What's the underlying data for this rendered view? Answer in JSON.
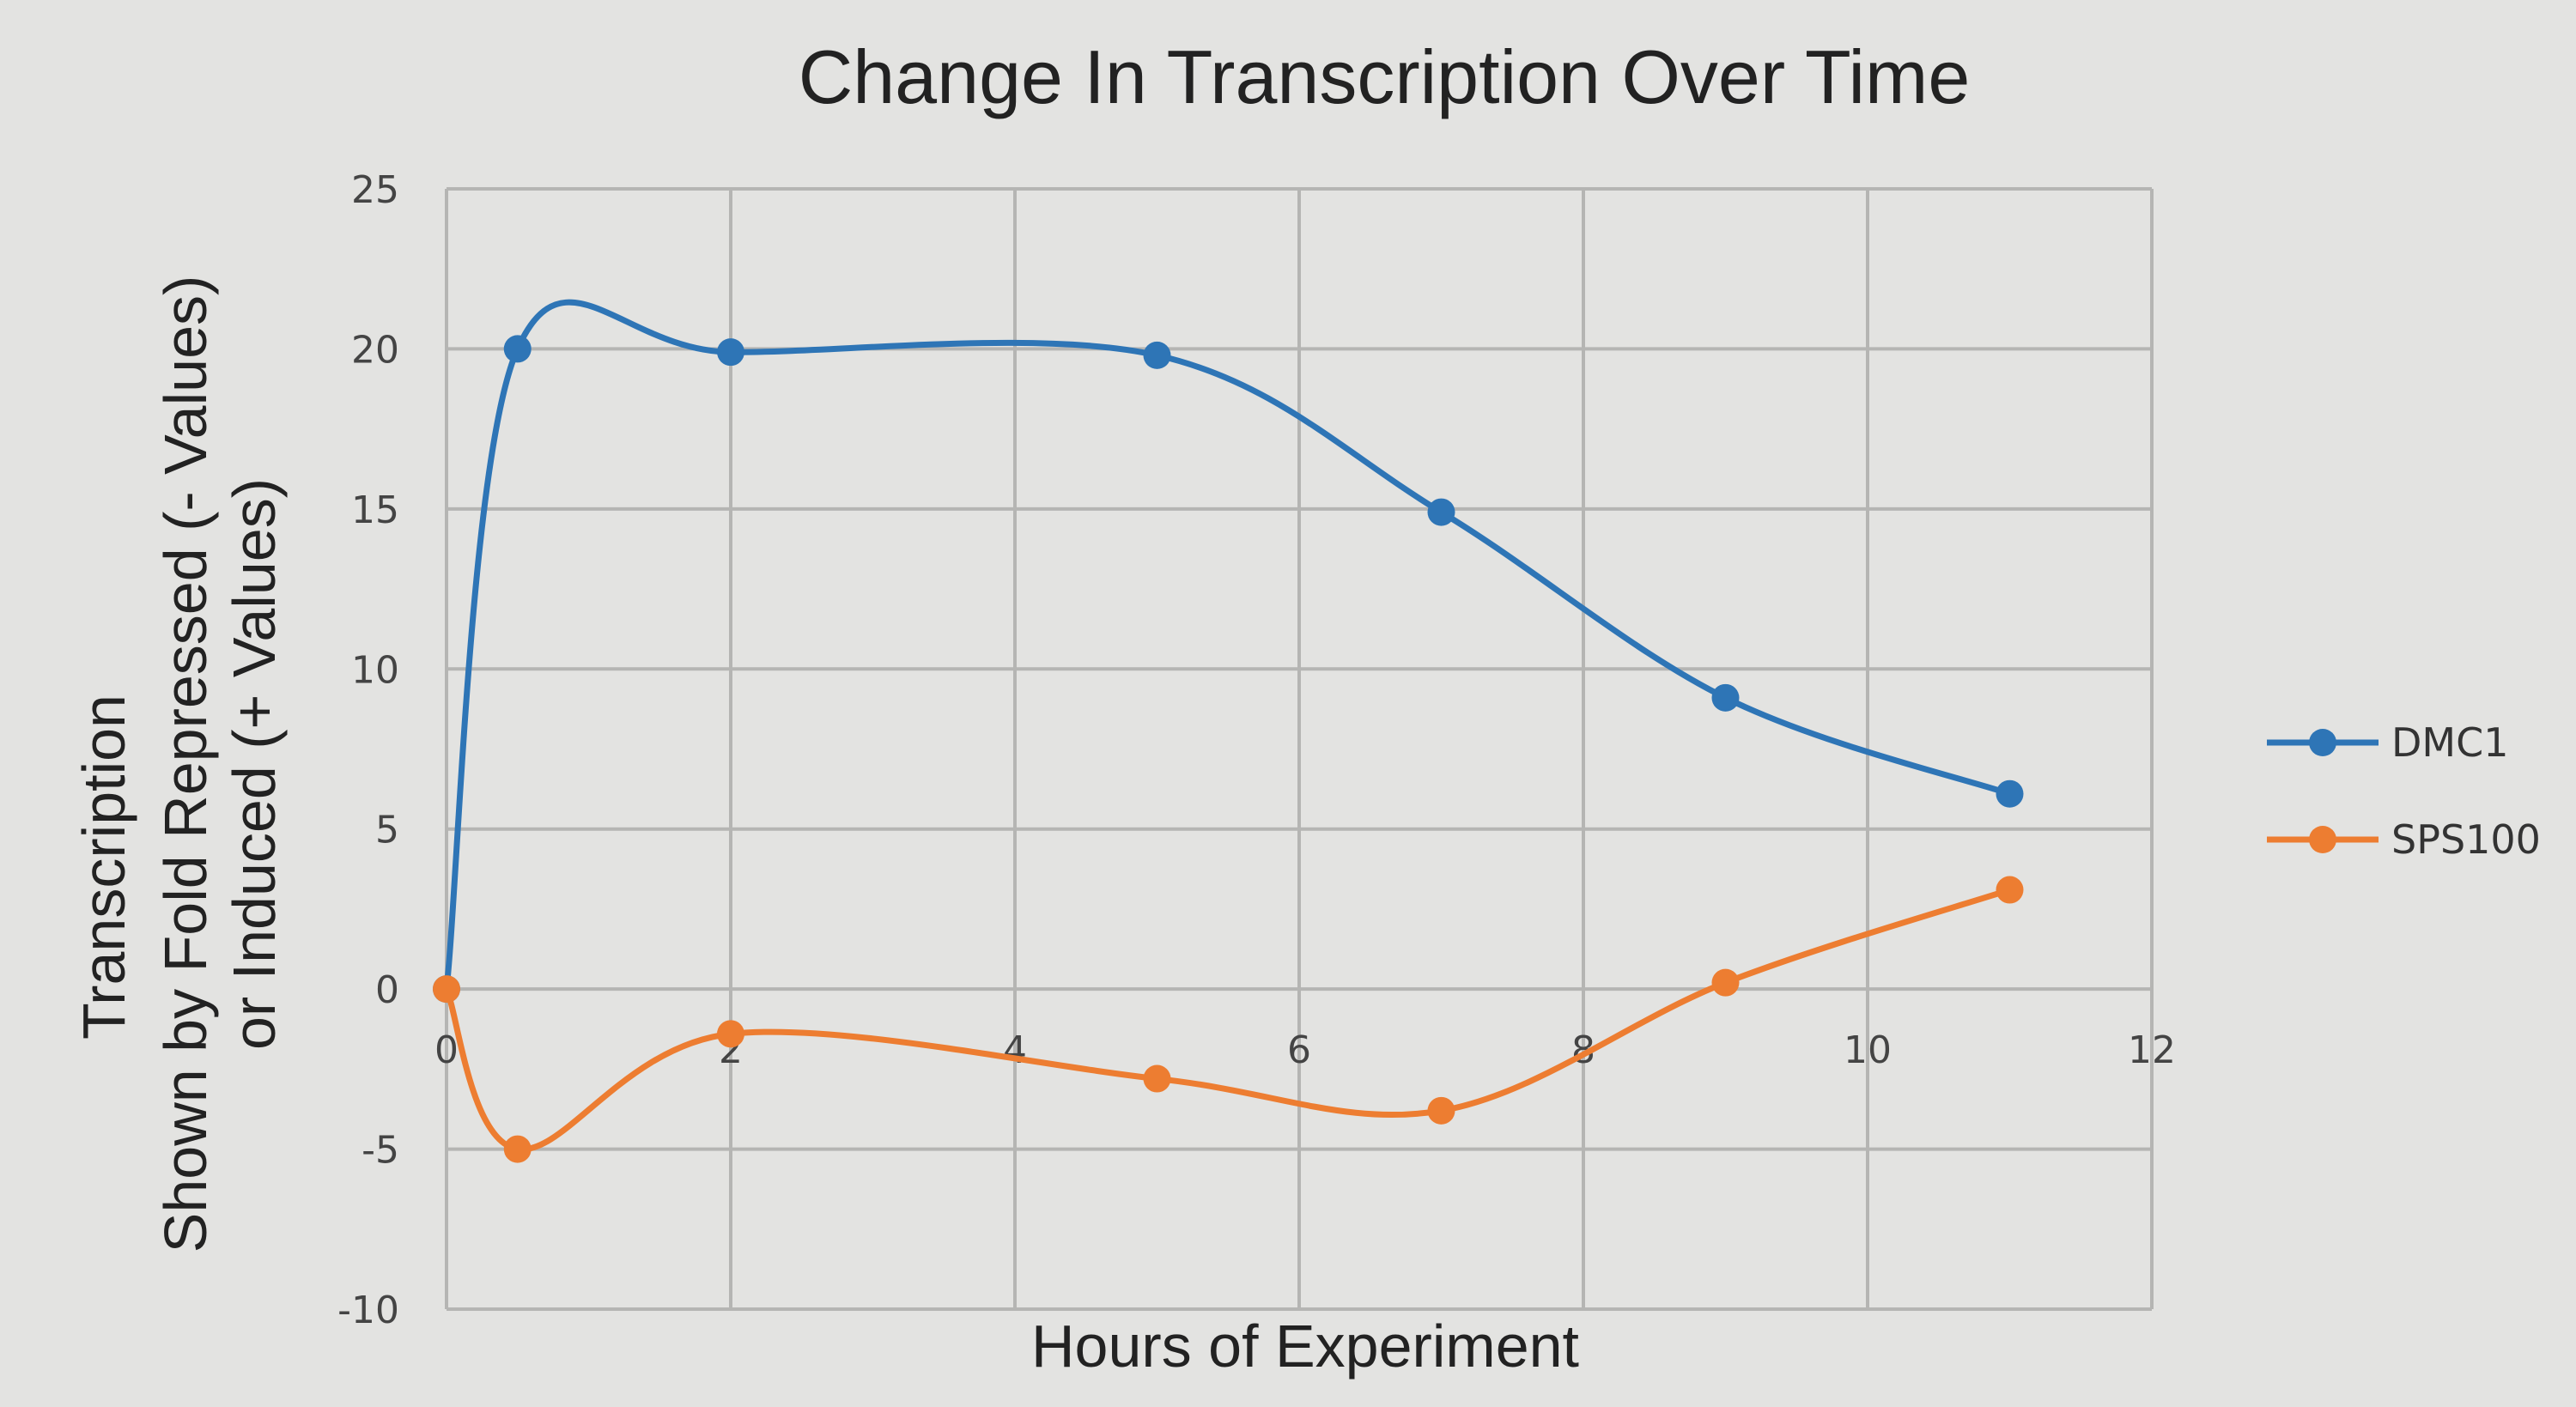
{
  "chart_data": {
    "type": "line",
    "title": "Change In Transcription Over Time",
    "xlabel": "Hours of Experiment",
    "ylabel_line1": "Transcription",
    "ylabel_line2": "Shown by Fold Repressed (- Values)",
    "ylabel_line3": "or Induced (+ Values)",
    "xlim": [
      0,
      12
    ],
    "ylim": [
      -10,
      25
    ],
    "xticks": [
      "0",
      "2",
      "4",
      "6",
      "8",
      "10",
      "12"
    ],
    "yticks": [
      "25",
      "20",
      "15",
      "10",
      "5",
      "0",
      "-5",
      "-10"
    ],
    "grid": true,
    "smoothed": true,
    "legend_position": "right",
    "series": [
      {
        "name": "DMC1",
        "color": "#2e75b6",
        "points": [
          [
            0,
            0
          ],
          [
            0.5,
            20
          ],
          [
            2,
            19.9
          ],
          [
            5,
            19.8
          ],
          [
            7,
            14.9
          ],
          [
            9,
            9.1
          ],
          [
            11,
            6.1
          ]
        ]
      },
      {
        "name": "SPS100",
        "color": "#ed7d31",
        "points": [
          [
            0,
            0
          ],
          [
            0.5,
            -5
          ],
          [
            2,
            -1.4
          ],
          [
            5,
            -2.8
          ],
          [
            7,
            -3.8
          ],
          [
            9,
            0.2
          ],
          [
            11,
            3.1
          ]
        ]
      }
    ]
  }
}
